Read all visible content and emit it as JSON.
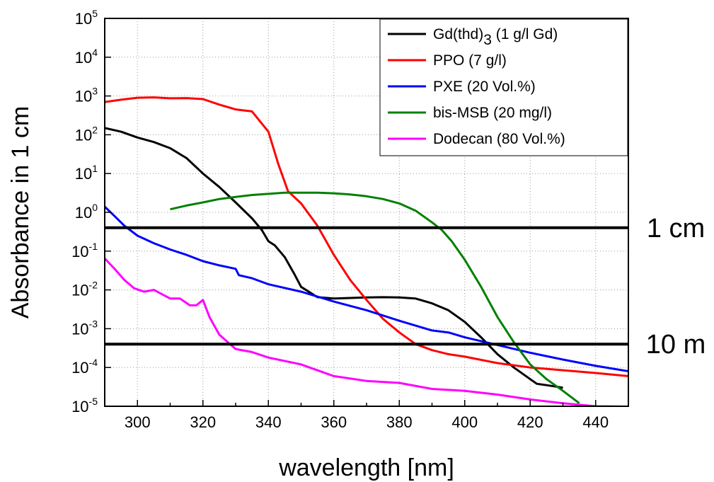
{
  "chart_data": {
    "type": "line",
    "xlabel": "wavelength [nm]",
    "ylabel": "Absorbance in 1 cm",
    "xlim": [
      290,
      450
    ],
    "ylim": [
      1e-05,
      100000.0
    ],
    "yscale": "log",
    "x_ticks": [
      "300",
      "320",
      "340",
      "360",
      "380",
      "400",
      "420",
      "440"
    ],
    "y_ticks": [
      {
        "base": "10",
        "exp": "-5"
      },
      {
        "base": "10",
        "exp": "-4"
      },
      {
        "base": "10",
        "exp": "-3"
      },
      {
        "base": "10",
        "exp": "-2"
      },
      {
        "base": "10",
        "exp": "-1"
      },
      {
        "base": "10",
        "exp": "0"
      },
      {
        "base": "10",
        "exp": "1"
      },
      {
        "base": "10",
        "exp": "2"
      },
      {
        "base": "10",
        "exp": "3"
      },
      {
        "base": "10",
        "exp": "4"
      },
      {
        "base": "10",
        "exp": "5"
      }
    ],
    "grid": true,
    "legend_position": "top-right",
    "reference_lines": [
      {
        "label": "1 cm",
        "y": 0.4
      },
      {
        "label": "10 m",
        "y": 0.0004
      }
    ],
    "series": [
      {
        "name": "Gd(thd)3 (1 g/l Gd)",
        "legend_main": "Gd(thd)",
        "legend_sub": "3",
        "legend_rest": " (1 g/l Gd)",
        "color": "#000000",
        "x": [
          290,
          295,
          300,
          305,
          310,
          315,
          320,
          325,
          330,
          335,
          338,
          340,
          342,
          345,
          348,
          350,
          355,
          360,
          365,
          370,
          375,
          380,
          385,
          390,
          395,
          400,
          405,
          410,
          415,
          420,
          422,
          425,
          428,
          430
        ],
        "y": [
          150,
          120,
          85,
          65,
          45,
          25,
          10,
          4.5,
          1.8,
          0.7,
          0.35,
          0.18,
          0.14,
          0.07,
          0.025,
          0.012,
          0.0065,
          0.006,
          0.0062,
          0.0064,
          0.0065,
          0.0064,
          0.006,
          0.0045,
          0.003,
          0.0015,
          0.0006,
          0.00022,
          0.0001,
          5e-05,
          3.8e-05,
          3.5e-05,
          3.2e-05,
          3e-05
        ]
      },
      {
        "name": "PPO (7 g/l)",
        "color": "#ff0000",
        "x": [
          290,
          295,
          300,
          305,
          310,
          315,
          320,
          325,
          330,
          335,
          340,
          343,
          346,
          350,
          355,
          360,
          365,
          370,
          375,
          380,
          385,
          390,
          395,
          400,
          410,
          420,
          430,
          440,
          450
        ],
        "y": [
          700,
          800,
          900,
          920,
          870,
          880,
          830,
          600,
          450,
          400,
          120,
          18,
          3.5,
          1.7,
          0.45,
          0.08,
          0.018,
          0.0055,
          0.0018,
          0.0008,
          0.0004,
          0.00028,
          0.00022,
          0.00019,
          0.00013,
          0.0001,
          8.5e-05,
          7.2e-05,
          6e-05
        ]
      },
      {
        "name": "PXE (20 Vol.%)",
        "color": "#0000ff",
        "x": [
          290,
          293,
          296,
          300,
          305,
          310,
          315,
          320,
          325,
          330,
          331,
          335,
          340,
          350,
          360,
          370,
          380,
          390,
          395,
          400,
          410,
          420,
          430,
          440,
          450
        ],
        "y": [
          1.4,
          0.8,
          0.45,
          0.25,
          0.16,
          0.11,
          0.08,
          0.055,
          0.043,
          0.035,
          0.024,
          0.02,
          0.014,
          0.009,
          0.005,
          0.003,
          0.0016,
          0.0009,
          0.0008,
          0.0006,
          0.00038,
          0.00024,
          0.00016,
          0.00011,
          8e-05
        ]
      },
      {
        "name": "bis-MSB (20 mg/l)",
        "color": "#008000",
        "x": [
          310,
          315,
          320,
          325,
          330,
          335,
          340,
          345,
          350,
          355,
          360,
          365,
          370,
          375,
          380,
          385,
          390,
          393,
          396,
          400,
          405,
          410,
          415,
          420,
          425,
          430,
          435
        ],
        "y": [
          1.2,
          1.5,
          1.8,
          2.2,
          2.5,
          2.8,
          3.0,
          3.2,
          3.2,
          3.2,
          3.1,
          2.9,
          2.6,
          2.2,
          1.7,
          1.1,
          0.55,
          0.35,
          0.18,
          0.06,
          0.012,
          0.002,
          0.00045,
          0.00012,
          5e-05,
          2.5e-05,
          1.2e-05
        ]
      },
      {
        "name": "Dodecan (80 Vol.%)",
        "color": "#ff00ff",
        "x": [
          290,
          293,
          296,
          299,
          302,
          305,
          310,
          313,
          316,
          318,
          320,
          322,
          325,
          330,
          335,
          340,
          350,
          360,
          370,
          380,
          390,
          400,
          410,
          420,
          430,
          440,
          450
        ],
        "y": [
          0.065,
          0.035,
          0.018,
          0.011,
          0.009,
          0.01,
          0.006,
          0.006,
          0.004,
          0.004,
          0.0055,
          0.002,
          0.0007,
          0.0003,
          0.00025,
          0.00018,
          0.00012,
          6e-05,
          4.5e-05,
          4e-05,
          2.8e-05,
          2.5e-05,
          2e-05,
          1.5e-05,
          1.2e-05,
          1e-05,
          9.8e-06
        ]
      }
    ]
  }
}
